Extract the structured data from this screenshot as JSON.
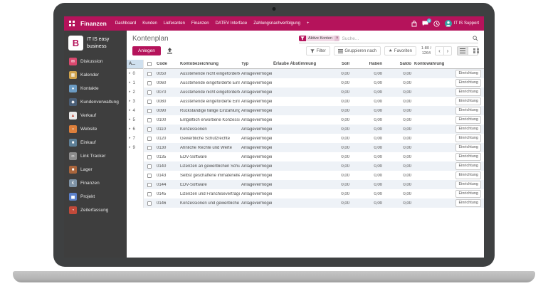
{
  "colors": {
    "accent": "#b5135b",
    "sidebar_bg": "#3e3e3e",
    "badge": "#4cc3cf",
    "row_stripe": "#eef2f7",
    "group_header_bg": "#cfe0ef",
    "avatar": "#35a3a3"
  },
  "topbar": {
    "app_name": "Finanzen",
    "menu": [
      "Dashboard",
      "Kunden",
      "Lieferanten",
      "Finanzen",
      "DATEV Interface",
      "Zahlungsnachverfolgung",
      "+"
    ],
    "message_badge": "0",
    "user_name": "IT IS Support"
  },
  "sidebar": {
    "logo_letter": "B",
    "brand_line1": "IT IS easy",
    "brand_line2": "business",
    "items": [
      {
        "label": "Diskussion",
        "icon": "chat-icon",
        "color": "#d9486e",
        "fg": "#ffffff",
        "glyph": "✉"
      },
      {
        "label": "Kalender",
        "icon": "calendar-icon",
        "color": "#cfa24c",
        "fg": "#ffffff",
        "glyph": "▦"
      },
      {
        "label": "Kontakte",
        "icon": "contacts-icon",
        "color": "#6b9bc3",
        "fg": "#ffffff",
        "glyph": "●"
      },
      {
        "label": "Kundenverwaltung",
        "icon": "crm-icon",
        "color": "#4a5f78",
        "fg": "#ffffff",
        "glyph": "◆"
      },
      {
        "label": "Verkauf",
        "icon": "sales-icon",
        "color": "#e9e9e9",
        "fg": "#c14a3a",
        "glyph": "▲"
      },
      {
        "label": "Website",
        "icon": "website-icon",
        "color": "#dd7f3b",
        "fg": "#ffffff",
        "glyph": "○"
      },
      {
        "label": "Einkauf",
        "icon": "purchase-icon",
        "color": "#5d7f97",
        "fg": "#ffffff",
        "glyph": "■"
      },
      {
        "label": "Link Tracker",
        "icon": "link-icon",
        "color": "#8d8d8d",
        "fg": "#ffffff",
        "glyph": "∞"
      },
      {
        "label": "Lager",
        "icon": "inventory-icon",
        "color": "#a9653c",
        "fg": "#ffffff",
        "glyph": "■"
      },
      {
        "label": "Finanzen",
        "icon": "accounting-icon",
        "color": "#7e93a6",
        "fg": "#ffffff",
        "glyph": "€"
      },
      {
        "label": "Projekt",
        "icon": "project-icon",
        "color": "#5b80c9",
        "fg": "#ffffff",
        "glyph": "▅"
      },
      {
        "label": "Zeiterfassung",
        "icon": "timesheet-icon",
        "color": "#c14a3a",
        "fg": "#ffffff",
        "glyph": "◔"
      }
    ]
  },
  "main": {
    "title": "Kontenplan",
    "create_button": "Anlegen",
    "search": {
      "facet_label": "Aktive Konten",
      "facet_remove": "×",
      "placeholder": "Suche..."
    },
    "controls": {
      "filter": "Filter",
      "group_by": "Gruppieren nach",
      "favorites": "Favoriten",
      "pager_range": "1-80 /",
      "pager_total": "1264",
      "prev": "‹",
      "next": "›"
    },
    "group_panel": {
      "header": "A...",
      "groups": [
        "0",
        "1",
        "2",
        "3",
        "4",
        "5",
        "6",
        "7",
        "9"
      ]
    },
    "table": {
      "columns": {
        "code": "Code",
        "name": "Kontobezeichnung",
        "type": "Typ",
        "reconcile": "Erlaube Abstimmung",
        "debit": "Soll",
        "credit": "Haben",
        "balance": "Saldo",
        "currency": "Kontowährung"
      },
      "row_action": "Einrichtung",
      "rows": [
        {
          "code": "0050",
          "name": "Ausstehende nicht eingeforderte ...",
          "type": "Anlagevermögen",
          "debit": "0,00",
          "credit": "0,00",
          "balance": "0,00",
          "currency": ""
        },
        {
          "code": "0060",
          "name": "Ausstehende eingeforderte Einlag...",
          "type": "Anlagevermögen",
          "debit": "0,00",
          "credit": "0,00",
          "balance": "0,00",
          "currency": ""
        },
        {
          "code": "0070",
          "name": "Ausstehende nicht eingeforderte ...",
          "type": "Anlagevermögen",
          "debit": "0,00",
          "credit": "0,00",
          "balance": "0,00",
          "currency": ""
        },
        {
          "code": "0080",
          "name": "Ausstehende eingeforderte Einlag...",
          "type": "Anlagevermögen",
          "debit": "0,00",
          "credit": "0,00",
          "balance": "0,00",
          "currency": ""
        },
        {
          "code": "0090",
          "name": "Rückständige fällige Einzahlunge...",
          "type": "Anlagevermögen",
          "debit": "0,00",
          "credit": "0,00",
          "balance": "0,00",
          "currency": ""
        },
        {
          "code": "0100",
          "name": "Entgeltlich erworbene Konzession...",
          "type": "Anlagevermögen",
          "debit": "0,00",
          "credit": "0,00",
          "balance": "0,00",
          "currency": ""
        },
        {
          "code": "0110",
          "name": "Konzessionen",
          "type": "Anlagevermögen",
          "debit": "0,00",
          "credit": "0,00",
          "balance": "0,00",
          "currency": ""
        },
        {
          "code": "0120",
          "name": "Gewerbliche Schutzrechte",
          "type": "Anlagevermögen",
          "debit": "0,00",
          "credit": "0,00",
          "balance": "0,00",
          "currency": ""
        },
        {
          "code": "0130",
          "name": "Ähnliche Rechte und Werte",
          "type": "Anlagevermögen",
          "debit": "0,00",
          "credit": "0,00",
          "balance": "0,00",
          "currency": ""
        },
        {
          "code": "0135",
          "name": "EDV-Software",
          "type": "Anlagevermögen",
          "debit": "0,00",
          "credit": "0,00",
          "balance": "0,00",
          "currency": ""
        },
        {
          "code": "0140",
          "name": "Lizenzen an gewerblichen Schutzr...",
          "type": "Anlagevermögen",
          "debit": "0,00",
          "credit": "0,00",
          "balance": "0,00",
          "currency": ""
        },
        {
          "code": "0143",
          "name": "Selbst geschaffene immaterielle ...",
          "type": "Anlagevermögen",
          "debit": "0,00",
          "credit": "0,00",
          "balance": "0,00",
          "currency": ""
        },
        {
          "code": "0144",
          "name": "EDV-Software",
          "type": "Anlagevermögen",
          "debit": "0,00",
          "credit": "0,00",
          "balance": "0,00",
          "currency": ""
        },
        {
          "code": "0145",
          "name": "Lizenzen und Franchiseverträge",
          "type": "Anlagevermögen",
          "debit": "0,00",
          "credit": "0,00",
          "balance": "0,00",
          "currency": ""
        },
        {
          "code": "0146",
          "name": "Konzessionen und gewerbliche S...",
          "type": "Anlagevermögen",
          "debit": "0,00",
          "credit": "0,00",
          "balance": "0,00",
          "currency": ""
        }
      ]
    }
  }
}
